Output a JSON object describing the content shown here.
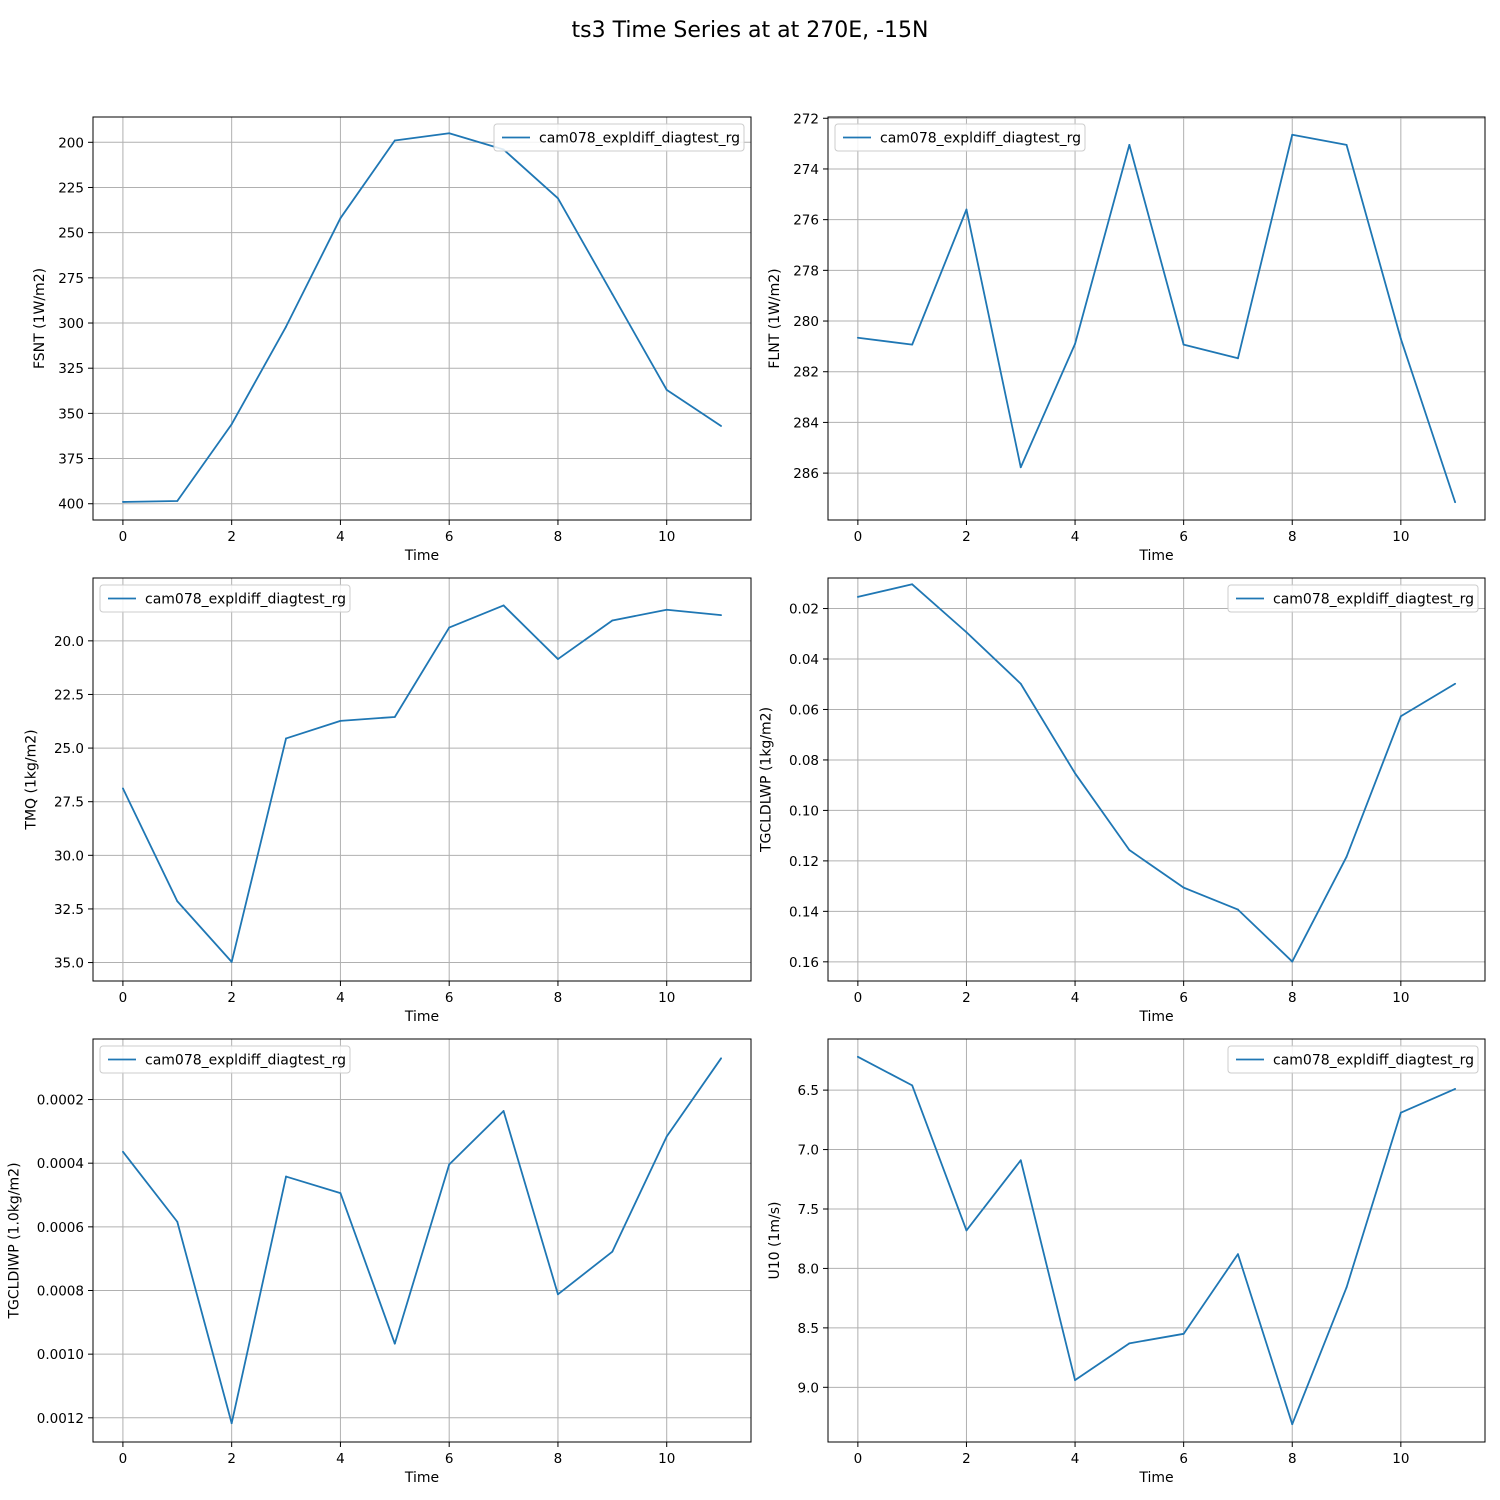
{
  "figure": {
    "title": "ts3 Time Series at at 270E, -15N"
  },
  "colors": {
    "series": "#1f77b4",
    "grid": "#b0b0b0",
    "axes": "#000000",
    "legend_border": "#cccccc"
  },
  "chart_data": [
    {
      "type": "line",
      "xlabel": "Time",
      "ylabel": "FSNT (1W/m2)",
      "y_inverted": true,
      "grid": true,
      "legend": "upper right",
      "xlim": [
        -0.55,
        11.55
      ],
      "ylim": [
        409,
        186
      ],
      "xticks": [
        0,
        2,
        4,
        6,
        8,
        10
      ],
      "yticks": [
        200,
        225,
        250,
        275,
        300,
        325,
        350,
        375,
        400
      ],
      "yticklabels": [
        "200",
        "225",
        "250",
        "275",
        "300",
        "325",
        "350",
        "375",
        "400"
      ],
      "series": [
        {
          "name": "cam078_expldiff_diagtest_rg",
          "x": [
            0,
            1,
            2,
            3,
            4,
            5,
            6,
            7,
            8,
            9,
            10,
            11
          ],
          "y": [
            399,
            398.5,
            356,
            302,
            242,
            199,
            195,
            204,
            231,
            284,
            337,
            357
          ]
        }
      ]
    },
    {
      "type": "line",
      "xlabel": "Time",
      "ylabel": "FLNT (1W/m2)",
      "y_inverted": true,
      "grid": true,
      "legend": "upper left",
      "xlim": [
        -0.55,
        11.55
      ],
      "ylim": [
        287.85,
        271.95
      ],
      "xticks": [
        0,
        2,
        4,
        6,
        8,
        10
      ],
      "yticks": [
        272,
        274,
        276,
        278,
        280,
        282,
        284,
        286
      ],
      "yticklabels": [
        "272",
        "274",
        "276",
        "278",
        "280",
        "282",
        "284",
        "286"
      ],
      "series": [
        {
          "name": "cam078_expldiff_diagtest_rg",
          "x": [
            0,
            1,
            2,
            3,
            4,
            5,
            6,
            7,
            8,
            9,
            10,
            11
          ],
          "y": [
            280.66,
            280.93,
            275.6,
            285.77,
            280.9,
            273.05,
            280.93,
            281.47,
            272.65,
            273.05,
            280.7,
            287.15
          ]
        }
      ]
    },
    {
      "type": "line",
      "xlabel": "Time",
      "ylabel": "TMQ (1kg/m2)",
      "y_inverted": true,
      "grid": true,
      "legend": "upper left",
      "xlim": [
        -0.55,
        11.55
      ],
      "ylim": [
        35.86,
        17.07
      ],
      "xticks": [
        0,
        2,
        4,
        6,
        8,
        10
      ],
      "yticks": [
        20.0,
        22.5,
        25.0,
        27.5,
        30.0,
        32.5,
        35.0
      ],
      "yticklabels": [
        "20.0",
        "22.5",
        "25.0",
        "27.5",
        "30.0",
        "32.5",
        "35.0"
      ],
      "series": [
        {
          "name": "cam078_expldiff_diagtest_rg",
          "x": [
            0,
            1,
            2,
            3,
            4,
            5,
            6,
            7,
            8,
            9,
            10,
            11
          ],
          "y": [
            26.88,
            32.14,
            34.97,
            24.55,
            23.73,
            23.55,
            19.38,
            18.35,
            20.85,
            19.05,
            18.55,
            18.8
          ]
        }
      ]
    },
    {
      "type": "line",
      "xlabel": "Time",
      "ylabel": "TGCLDLWP (1kg/m2)",
      "y_inverted": true,
      "grid": true,
      "legend": "upper right",
      "xlim": [
        -0.55,
        11.55
      ],
      "ylim": [
        0.1676,
        0.0079
      ],
      "xticks": [
        0,
        2,
        4,
        6,
        8,
        10
      ],
      "yticks": [
        0.02,
        0.04,
        0.06,
        0.08,
        0.1,
        0.12,
        0.14,
        0.16
      ],
      "yticklabels": [
        "0.02",
        "0.04",
        "0.06",
        "0.08",
        "0.10",
        "0.12",
        "0.14",
        "0.16"
      ],
      "series": [
        {
          "name": "cam078_expldiff_diagtest_rg",
          "x": [
            0,
            1,
            2,
            3,
            4,
            5,
            6,
            7,
            8,
            9,
            10,
            11
          ],
          "y": [
            0.0154,
            0.0104,
            0.0294,
            0.0498,
            0.0853,
            0.1157,
            0.1306,
            0.1393,
            0.1599,
            0.1184,
            0.0627,
            0.0498
          ]
        }
      ]
    },
    {
      "type": "line",
      "xlabel": "Time",
      "ylabel": "TGCLDIWP (1.0kg/m2)",
      "y_inverted": true,
      "grid": true,
      "legend": "upper left",
      "xlim": [
        -0.55,
        11.55
      ],
      "ylim": [
        0.001276,
        9.8e-06
      ],
      "xticks": [
        0,
        2,
        4,
        6,
        8,
        10
      ],
      "yticks": [
        0.0002,
        0.0004,
        0.0006,
        0.0008,
        0.001,
        0.0012
      ],
      "yticklabels": [
        "0.0002",
        "0.0004",
        "0.0006",
        "0.0008",
        "0.0010",
        "0.0012"
      ],
      "series": [
        {
          "name": "cam078_expldiff_diagtest_rg",
          "x": [
            0,
            1,
            2,
            3,
            4,
            5,
            6,
            7,
            8,
            9,
            10,
            11
          ],
          "y": [
            0.000364,
            0.000584,
            0.001217,
            0.000442,
            0.000494,
            0.000967,
            0.000404,
            0.000236,
            0.000812,
            0.000678,
            0.000316,
            7.05e-05
          ]
        }
      ]
    },
    {
      "type": "line",
      "xlabel": "Time",
      "ylabel": "U10 (1m/s)",
      "y_inverted": true,
      "grid": true,
      "legend": "upper right",
      "xlim": [
        -0.55,
        11.55
      ],
      "ylim": [
        9.46,
        6.07
      ],
      "xticks": [
        0,
        2,
        4,
        6,
        8,
        10
      ],
      "yticks": [
        6.5,
        7.0,
        7.5,
        8.0,
        8.5,
        9.0
      ],
      "yticklabels": [
        "6.5",
        "7.0",
        "7.5",
        "8.0",
        "8.5",
        "9.0"
      ],
      "series": [
        {
          "name": "cam078_expldiff_diagtest_rg",
          "x": [
            0,
            1,
            2,
            3,
            4,
            5,
            6,
            7,
            8,
            9,
            10,
            11
          ],
          "y": [
            6.22,
            6.46,
            7.68,
            7.09,
            8.94,
            8.63,
            8.55,
            7.88,
            9.31,
            8.16,
            6.69,
            6.49
          ]
        }
      ]
    }
  ]
}
